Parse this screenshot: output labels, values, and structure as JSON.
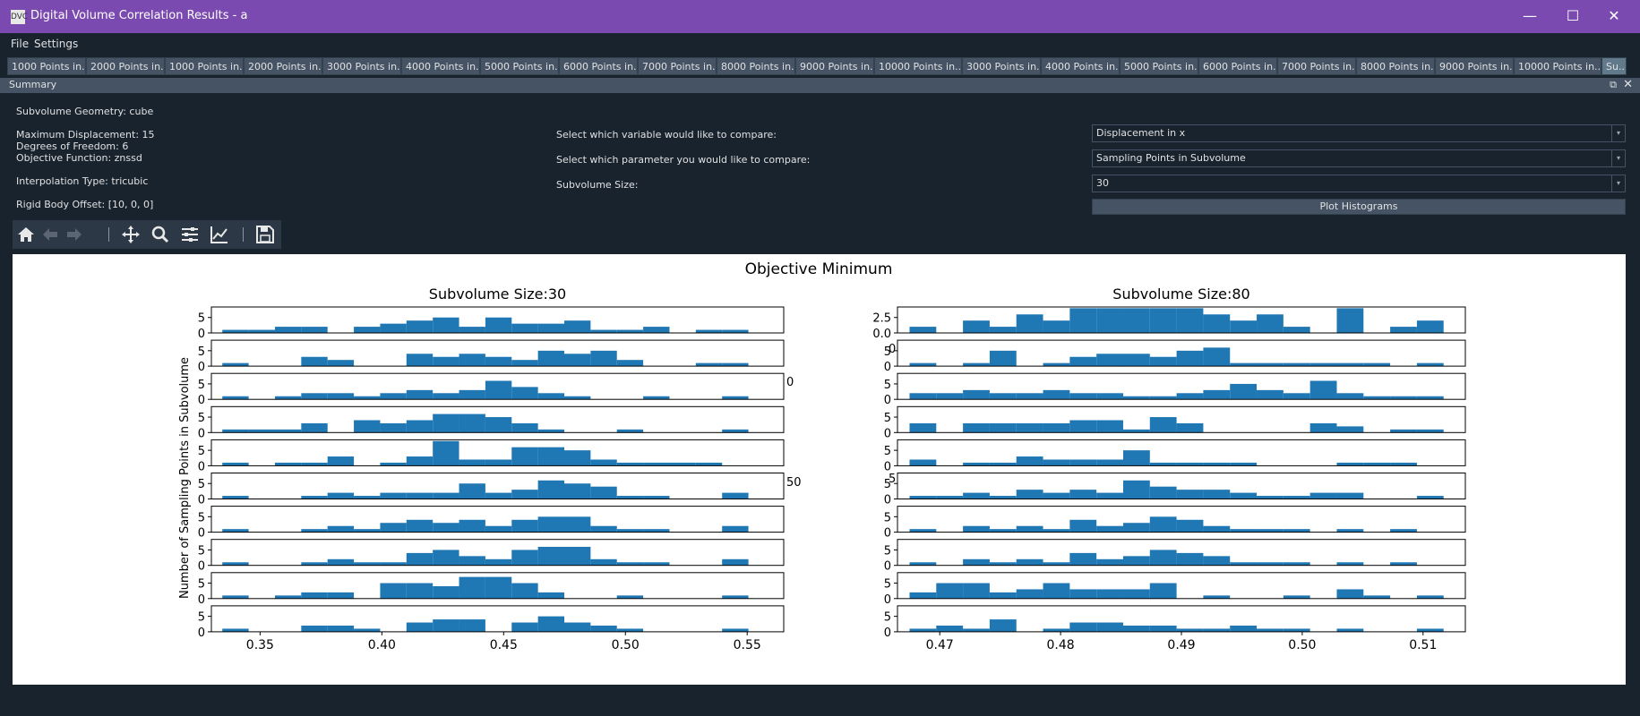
{
  "window": {
    "title": "Digital Volume Correlation Results - a",
    "icon_label": "DVC",
    "minimize_glyph": "—",
    "maximize_glyph": "☐",
    "close_glyph": "✕"
  },
  "menu": {
    "file": "File",
    "settings": "Settings"
  },
  "tabs": [
    "1000 Points in...",
    "2000 Points in...",
    "1000 Points in...",
    "2000 Points in...",
    "3000 Points in...",
    "4000 Points in...",
    "5000 Points in...",
    "6000 Points in...",
    "7000 Points in...",
    "8000 Points in...",
    "9000 Points in...",
    "10000 Points in...",
    "3000 Points in...",
    "4000 Points in...",
    "5000 Points in...",
    "6000 Points in...",
    "7000 Points in...",
    "8000 Points in...",
    "9000 Points in...",
    "10000 Points in...",
    "Su..."
  ],
  "dock": {
    "title": "Summary",
    "float_glyph": "⧉",
    "close_glyph": "✕"
  },
  "summary": {
    "geometry": "Subvolume Geometry: cube",
    "max_disp": "Maximum Displacement: 15",
    "dof": "Degrees of Freedom: 6",
    "objective": "Objective Function: znssd",
    "interp": "Interpolation Type: tricubic",
    "offset": "Rigid Body Offset: [10, 0, 0]"
  },
  "controls": {
    "variable_label": "Select which variable would like to compare:",
    "variable_value": "Displacement in x",
    "parameter_label": "Select which parameter you would like to compare:",
    "parameter_value": "Sampling Points in Subvolume",
    "size_label": "Subvolume Size:",
    "size_value": "30",
    "plot_button": "Plot Histograms",
    "combo_arrow": "▾"
  },
  "chart_data": {
    "type": "bar",
    "title": "Objective Minimum",
    "color": "#1f77b4",
    "panels": [
      {
        "title": "Subvolume Size:30",
        "x_range": [
          0.33,
          0.565
        ],
        "x_ticks": [
          "0.35",
          "0.40",
          "0.45",
          "0.50",
          "0.55"
        ],
        "x_tick_values": [
          0.35,
          0.4,
          0.45,
          0.5,
          0.55
        ],
        "stray_labels": [
          "0",
          "50"
        ],
        "ylabel": "Number of Sampling Points in Subvolume",
        "first_row_yticks": [
          "5",
          "0"
        ],
        "row_yticks": [
          "5",
          "0"
        ],
        "bin_start": 0.3345,
        "bin_width": 0.0108,
        "rows": [
          [
            1,
            1,
            2,
            2,
            0,
            2,
            3,
            4,
            5,
            2,
            5,
            3,
            3,
            4,
            1,
            1,
            2,
            0,
            1,
            1
          ],
          [
            1,
            0,
            0,
            3,
            2,
            0,
            0,
            4,
            3,
            4,
            3,
            2,
            5,
            4,
            5,
            2,
            0,
            0,
            1,
            1
          ],
          [
            1,
            0,
            1,
            2,
            2,
            1,
            2,
            3,
            2,
            3,
            6,
            4,
            2,
            1,
            0,
            0,
            1,
            0,
            0,
            1
          ],
          [
            1,
            1,
            1,
            3,
            0,
            4,
            3,
            4,
            6,
            6,
            5,
            3,
            1,
            0,
            0,
            1,
            0,
            0,
            0,
            1
          ],
          [
            1,
            0,
            1,
            1,
            3,
            0,
            1,
            3,
            8,
            2,
            2,
            6,
            6,
            5,
            2,
            1,
            1,
            1,
            1,
            0
          ],
          [
            1,
            0,
            0,
            1,
            2,
            1,
            2,
            2,
            2,
            5,
            2,
            3,
            6,
            5,
            4,
            1,
            1,
            0,
            0,
            2
          ],
          [
            1,
            0,
            0,
            1,
            2,
            1,
            3,
            4,
            3,
            4,
            2,
            4,
            5,
            5,
            2,
            1,
            1,
            0,
            0,
            2
          ],
          [
            1,
            0,
            0,
            1,
            2,
            1,
            1,
            4,
            5,
            3,
            2,
            5,
            6,
            6,
            2,
            1,
            1,
            0,
            0,
            2
          ],
          [
            1,
            0,
            1,
            2,
            2,
            0,
            5,
            5,
            4,
            7,
            7,
            5,
            2,
            0,
            0,
            1,
            0,
            0,
            0,
            1
          ],
          [
            1,
            0,
            0,
            2,
            2,
            1,
            0,
            3,
            4,
            4,
            0,
            3,
            5,
            3,
            2,
            1,
            0,
            0,
            0,
            1
          ]
        ]
      },
      {
        "title": "Subvolume Size:80",
        "x_range": [
          0.4665,
          0.5135
        ],
        "x_ticks": [
          "0.47",
          "0.48",
          "0.49",
          "0.50",
          "0.51"
        ],
        "x_tick_values": [
          0.47,
          0.48,
          0.49,
          0.5,
          0.51
        ],
        "stray_labels": [
          "0",
          "5"
        ],
        "ylabel": "",
        "first_row_yticks": [
          "2.5",
          "0.0"
        ],
        "row_yticks": [
          "5",
          "0"
        ],
        "bin_start": 0.4675,
        "bin_width": 0.00221,
        "rows": [
          [
            1,
            0,
            2,
            1,
            3,
            2,
            4,
            4,
            4,
            4,
            4,
            3,
            2,
            3,
            1,
            0,
            4,
            0,
            1,
            2
          ],
          [
            1,
            0,
            1,
            5,
            0,
            1,
            3,
            4,
            4,
            3,
            5,
            6,
            1,
            1,
            1,
            1,
            1,
            1,
            0,
            1
          ],
          [
            2,
            2,
            3,
            2,
            2,
            3,
            2,
            2,
            1,
            1,
            2,
            3,
            5,
            3,
            2,
            6,
            2,
            1,
            1,
            1
          ],
          [
            3,
            0,
            3,
            3,
            3,
            3,
            4,
            4,
            1,
            5,
            3,
            0,
            0,
            0,
            0,
            3,
            2,
            0,
            1,
            1
          ],
          [
            2,
            0,
            1,
            1,
            3,
            2,
            2,
            2,
            5,
            1,
            1,
            1,
            1,
            0,
            0,
            0,
            1,
            1,
            1,
            0
          ],
          [
            1,
            1,
            2,
            1,
            3,
            2,
            3,
            2,
            6,
            4,
            3,
            3,
            2,
            1,
            1,
            2,
            2,
            0,
            0,
            1
          ],
          [
            1,
            0,
            2,
            1,
            2,
            1,
            4,
            2,
            3,
            5,
            4,
            2,
            1,
            1,
            1,
            0,
            1,
            0,
            1,
            0
          ],
          [
            1,
            0,
            2,
            1,
            2,
            1,
            4,
            2,
            3,
            5,
            4,
            3,
            1,
            1,
            1,
            0,
            1,
            0,
            1,
            0
          ],
          [
            2,
            5,
            5,
            2,
            3,
            5,
            3,
            3,
            3,
            5,
            0,
            1,
            0,
            0,
            1,
            0,
            3,
            1,
            0,
            1
          ],
          [
            1,
            2,
            1,
            4,
            0,
            1,
            3,
            3,
            2,
            2,
            1,
            1,
            2,
            1,
            1,
            0,
            1,
            0,
            0,
            1
          ]
        ]
      }
    ]
  }
}
